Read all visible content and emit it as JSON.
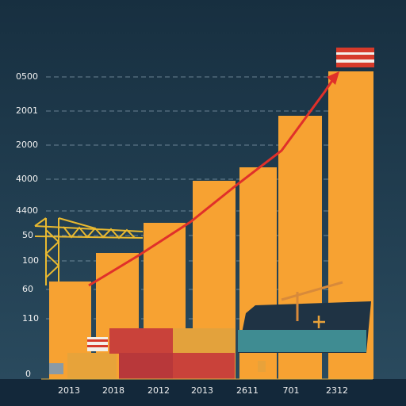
{
  "axis_labels": {
    "left": [
      "0500",
      "2001",
      "2000",
      "4000",
      "4400",
      "50",
      "100",
      "60",
      "110",
      "0"
    ],
    "bottom": [
      "2013",
      "2018",
      "2012",
      "2013",
      "2611",
      "701",
      "2312"
    ]
  }
}
